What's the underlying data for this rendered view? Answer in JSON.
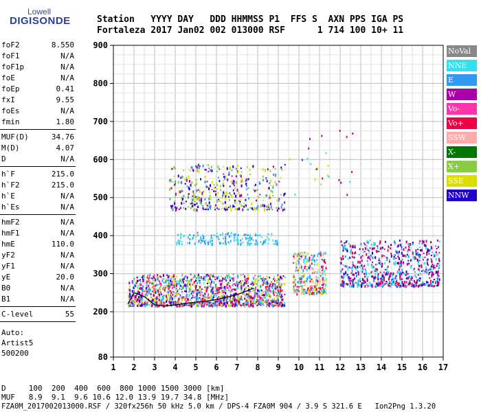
{
  "logo": {
    "top": "Lowell",
    "main": "DIGISONDE"
  },
  "header": {
    "row1": "Station   YYYY DAY   DDD HHMMSS P1  FFS S  AXN PPS IGA PS",
    "row2": "Fortaleza 2017 Jan02 002 013000 RSF      1 714 100 10+ 11"
  },
  "params": {
    "group1": [
      {
        "label": "foF2",
        "value": "8.550"
      },
      {
        "label": "foF1",
        "value": "N/A"
      },
      {
        "label": "foF1p",
        "value": "N/A"
      },
      {
        "label": "foE",
        "value": "N/A"
      },
      {
        "label": "foEp",
        "value": "0.41"
      },
      {
        "label": "fxI",
        "value": "9.55"
      },
      {
        "label": "foEs",
        "value": "N/A"
      },
      {
        "label": "fmin",
        "value": "1.80"
      }
    ],
    "group2": [
      {
        "label": "MUF(D)",
        "value": "34.76"
      },
      {
        "label": "M(D)",
        "value": "4.07"
      },
      {
        "label": "D",
        "value": "N/A"
      }
    ],
    "group3": [
      {
        "label": "h`F",
        "value": "215.0"
      },
      {
        "label": "h`F2",
        "value": "215.0"
      },
      {
        "label": "h`E",
        "value": "N/A"
      },
      {
        "label": "h`Es",
        "value": "N/A"
      }
    ],
    "group4": [
      {
        "label": "hmF2",
        "value": "N/A"
      },
      {
        "label": "hmF1",
        "value": "N/A"
      },
      {
        "label": "hmE",
        "value": "110.0"
      },
      {
        "label": "yF2",
        "value": "N/A"
      },
      {
        "label": "yF1",
        "value": "N/A"
      },
      {
        "label": "yE",
        "value": "20.0"
      },
      {
        "label": "B0",
        "value": "N/A"
      },
      {
        "label": "B1",
        "value": "N/A"
      }
    ],
    "group5": [
      {
        "label": "C-level",
        "value": "55"
      }
    ],
    "auto": [
      "Auto:",
      "Artist5",
      "500200"
    ]
  },
  "legend": [
    {
      "label": "NoVal",
      "color": "#888888"
    },
    {
      "label": "NNE",
      "color": "#33e0f0"
    },
    {
      "label": "E",
      "color": "#3399ee"
    },
    {
      "label": "W",
      "color": "#aa00aa"
    },
    {
      "label": "Vo-",
      "color": "#ff33aa"
    },
    {
      "label": "Vo+",
      "color": "#ee0044"
    },
    {
      "label": "SSW",
      "color": "#ffaaaa"
    },
    {
      "label": "X-",
      "color": "#007700"
    },
    {
      "label": "X+",
      "color": "#88cc44"
    },
    {
      "label": "SSE",
      "color": "#dddd00"
    },
    {
      "label": "NNW",
      "color": "#2200cc"
    }
  ],
  "bottom": {
    "d_row": "D     100  200  400  600  800 1000 1500 3000 [km]",
    "muf_row": "MUF   8.9  9.1  9.6 10.6 12.0 13.9 19.7 34.8 [MHz]",
    "footer": "FZA0M_2017002013000.RSF / 320fx256h 50 kHz 5.0 km / DPS-4 FZA0M 904 / 3.9 S 321.6 E   Ion2Png 1.3.20"
  },
  "chart_data": {
    "type": "scatter",
    "x_ticks": [
      "1",
      "2",
      "3",
      "4",
      "5",
      "6",
      "7",
      "8",
      "9",
      "10",
      "11",
      "12",
      "13",
      "14",
      "15",
      "16",
      "17"
    ],
    "y_ticks": [
      "80",
      "200",
      "300",
      "400",
      "500",
      "600",
      "700",
      "800",
      "900"
    ],
    "xlim": [
      1,
      17
    ],
    "y_axis_scale": "nonlinear (80 at bottom, 200 to 900 linear)",
    "grid": true,
    "legend_position": "right",
    "clusters": [
      {
        "name": "F-trace low",
        "x_range": [
          1.7,
          9.3
        ],
        "y_range": [
          218,
          300
        ],
        "colors": [
          "E",
          "NNE",
          "W",
          "Vo-",
          "Vo+",
          "SSE",
          "X+",
          "NNW"
        ]
      },
      {
        "name": "F-trace low dense",
        "x_range": [
          9.7,
          11.3
        ],
        "y_range": [
          250,
          360
        ],
        "colors": [
          "SSE",
          "Vo+",
          "SSW",
          "E",
          "NNE"
        ]
      },
      {
        "name": "F-trace right",
        "x_range": [
          12.0,
          16.8
        ],
        "y_range": [
          270,
          390
        ],
        "colors": [
          "E",
          "NNW",
          "W",
          "Vo+",
          "NNE"
        ]
      },
      {
        "name": "second hop",
        "x_range": [
          3.7,
          9.3
        ],
        "y_range": [
          470,
          590
        ],
        "colors": [
          "SSE",
          "X+",
          "E",
          "W",
          "NNW"
        ]
      },
      {
        "name": "mid band",
        "x_range": [
          4.0,
          9.0
        ],
        "y_range": [
          380,
          410
        ],
        "colors": [
          "E",
          "NNE"
        ]
      }
    ],
    "trace_line": {
      "x": [
        1.7,
        2.0,
        2.5,
        3.0,
        3.5,
        4.0,
        4.5,
        5.0,
        5.5,
        6.0,
        6.5,
        7.0,
        7.5,
        7.8
      ],
      "y": [
        220,
        250,
        240,
        218,
        215,
        218,
        222,
        225,
        228,
        232,
        238,
        245,
        255,
        262
      ]
    }
  }
}
